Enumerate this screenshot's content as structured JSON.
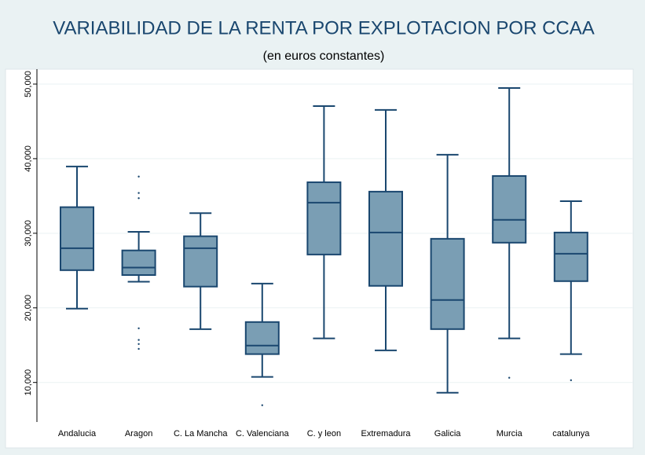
{
  "chart_data": {
    "type": "box",
    "title": "VARIABILIDAD DE LA RENTA POR EXPLOTACION POR CCAA",
    "subtitle": "(en euros constantes)",
    "categories": [
      "Andalucia",
      "Aragon",
      "C. La Mancha",
      "C. Valenciana",
      "C. y leon",
      "Extremadura",
      "Galicia",
      "Murcia",
      "catalunya"
    ],
    "boxes": [
      {
        "whisker_low": 19900,
        "q1": 25050,
        "median": 28000,
        "q3": 33500,
        "whisker_high": 38950,
        "outliers": []
      },
      {
        "whisker_low": 23500,
        "q1": 24400,
        "median": 25400,
        "q3": 27700,
        "whisker_high": 30200,
        "outliers": [
          37600,
          35400,
          34700,
          17260,
          15700,
          15150,
          14500
        ]
      },
      {
        "whisker_low": 17150,
        "q1": 22850,
        "median": 28000,
        "q3": 29600,
        "whisker_high": 32700,
        "outliers": []
      },
      {
        "whisker_low": 10740,
        "q1": 13800,
        "median": 14950,
        "q3": 18100,
        "whisker_high": 23260,
        "outliers": [
          6950
        ]
      },
      {
        "whisker_low": 15900,
        "q1": 27150,
        "median": 34100,
        "q3": 36840,
        "whisker_high": 47050,
        "outliers": []
      },
      {
        "whisker_low": 14300,
        "q1": 22950,
        "median": 30100,
        "q3": 35580,
        "whisker_high": 46530,
        "outliers": []
      },
      {
        "whisker_low": 8630,
        "q1": 17150,
        "median": 21050,
        "q3": 29260,
        "whisker_high": 40530,
        "outliers": []
      },
      {
        "whisker_low": 15900,
        "q1": 28740,
        "median": 31800,
        "q3": 37680,
        "whisker_high": 49470,
        "outliers": [
          10630
        ]
      },
      {
        "whisker_low": 13800,
        "q1": 23580,
        "median": 27260,
        "q3": 30100,
        "whisker_high": 34300,
        "outliers": [
          10300
        ]
      }
    ],
    "color": "#7a9eb4",
    "edge_color": "#1a476f",
    "ylim": [
      4700,
      52000
    ],
    "yticks": [
      {
        "value": 10000,
        "label": "10,000"
      },
      {
        "value": 20000,
        "label": "20,000"
      },
      {
        "value": 30000,
        "label": "30,000"
      },
      {
        "value": 40000,
        "label": "40,000"
      },
      {
        "value": 50000,
        "label": "50,000"
      }
    ],
    "grid": true
  }
}
